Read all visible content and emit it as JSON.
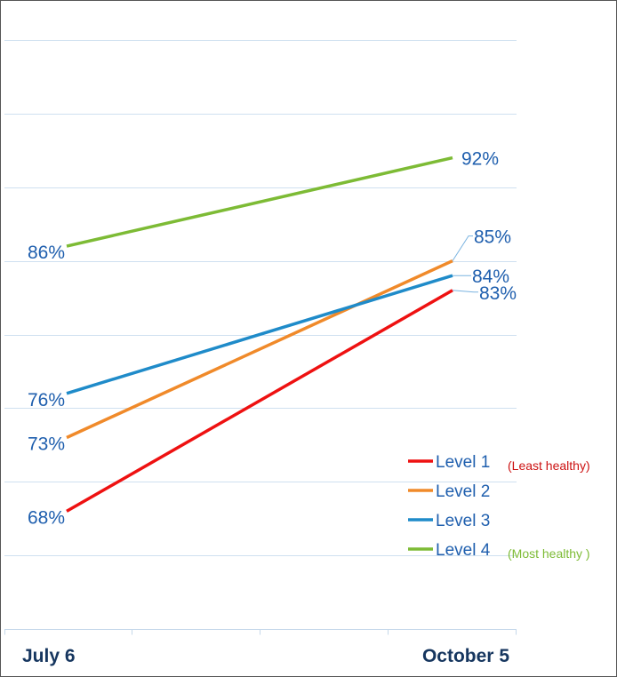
{
  "chart_data": {
    "type": "line",
    "x": [
      "July 6",
      "October 5"
    ],
    "series": [
      {
        "name": "Level 1",
        "note": "(Least healthy)",
        "values": [
          68,
          83
        ],
        "labels": [
          "68%",
          "83%"
        ],
        "color": "#ee1111"
      },
      {
        "name": "Level 2",
        "note": "",
        "values": [
          73,
          85
        ],
        "labels": [
          "73%",
          "85%"
        ],
        "color": "#f08a2a"
      },
      {
        "name": "Level 3",
        "note": "",
        "values": [
          76,
          84
        ],
        "labels": [
          "76%",
          "84%"
        ],
        "color": "#1f8bc9"
      },
      {
        "name": "Level 4",
        "note": "(Most healthy )",
        "values": [
          86,
          92
        ],
        "labels": [
          "86%",
          "92%"
        ],
        "color": "#7dbb35"
      }
    ],
    "note_colors": {
      "Level 1": "#cc1111",
      "Level 4": "#7dbb35"
    },
    "ylim": [
      60,
      100
    ],
    "grid": true,
    "legend_position": "right",
    "title": "",
    "xlabel": "",
    "ylabel": ""
  }
}
